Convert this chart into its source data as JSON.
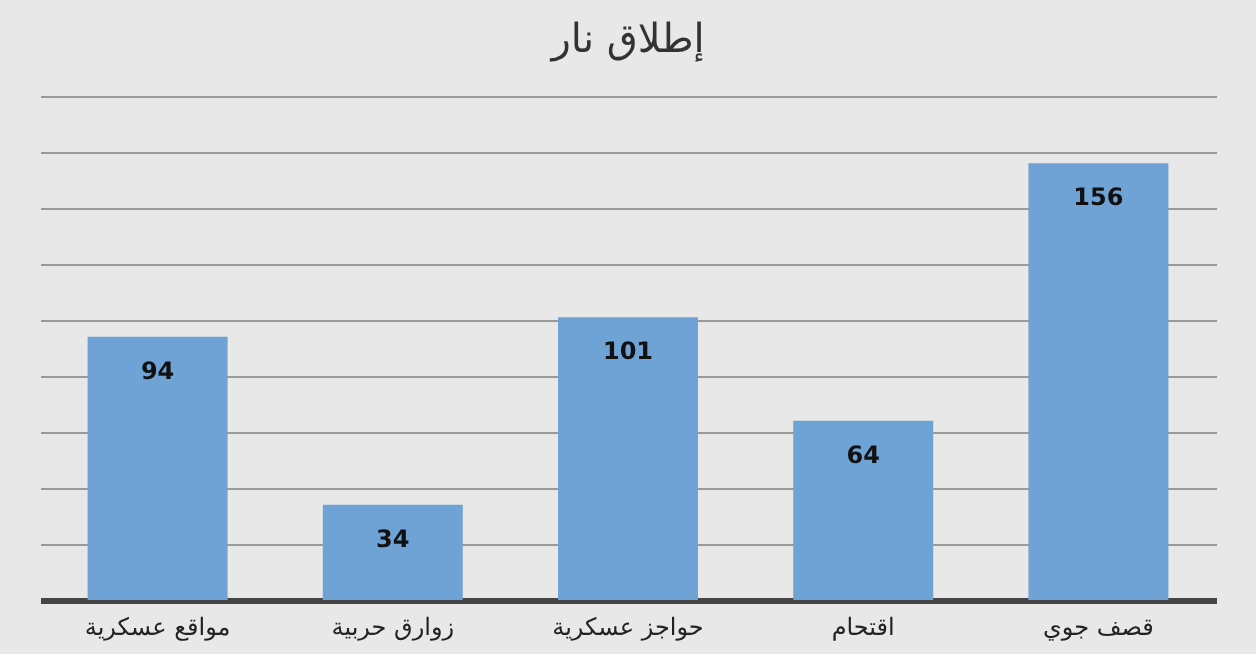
{
  "chart_data": {
    "type": "bar",
    "title": "إطلاق نار",
    "categories": [
      "مواقع عسكرية",
      "زوارق حربية",
      "حواجز عسكرية",
      "اقتحام",
      "قصف جوي"
    ],
    "values": [
      94,
      34,
      101,
      64,
      156
    ],
    "color": "#6fa3d6",
    "ylim": [
      0,
      180
    ],
    "yticks": [
      {
        "value": 0,
        "label": null
      },
      {
        "value": 20,
        "label": null
      },
      {
        "value": 40,
        "label": null
      },
      {
        "value": 60,
        "label": null
      },
      {
        "value": 80,
        "label": null
      },
      {
        "value": 100,
        "label": null
      },
      {
        "value": 120,
        "label": null
      },
      {
        "value": 140,
        "label": null
      },
      {
        "value": 160,
        "label": null
      },
      {
        "value": 180,
        "label": null
      }
    ],
    "grid": "y",
    "tick_labels": "x",
    "data_labels": true
  }
}
